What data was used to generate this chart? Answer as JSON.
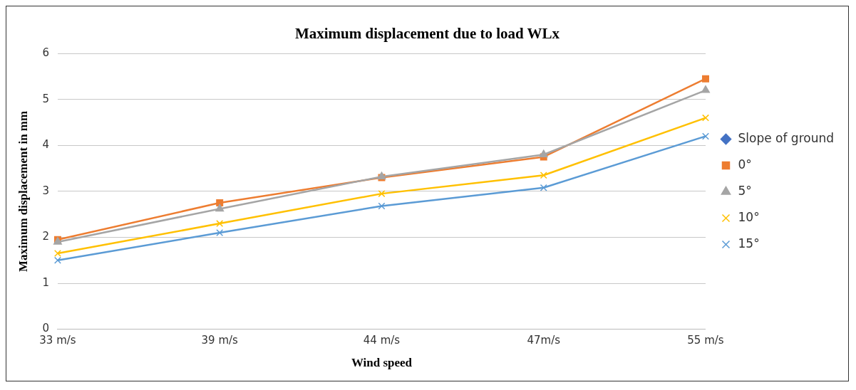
{
  "chart_data": {
    "type": "line",
    "title": "Maximum displacement due to load WLx",
    "xlabel": "Wind speed",
    "ylabel": "Maximum displacement in mm",
    "categories": [
      "33 m/s",
      "39 m/s",
      "44 m/s",
      "47m/s",
      "55 m/s"
    ],
    "series": [
      {
        "name": "Slope of ground",
        "color": "#4472c4",
        "marker": "diamond",
        "values": [
          null,
          null,
          null,
          null,
          null
        ]
      },
      {
        "name": "0°",
        "color": "#ed7d31",
        "marker": "square",
        "values": [
          1.95,
          2.75,
          3.3,
          3.75,
          5.45
        ]
      },
      {
        "name": "5°",
        "color": "#a5a5a5",
        "marker": "triangle",
        "values": [
          1.9,
          2.62,
          3.32,
          3.8,
          5.2
        ]
      },
      {
        "name": "10°",
        "color": "#ffc000",
        "marker": "cross",
        "values": [
          1.65,
          2.3,
          2.95,
          3.35,
          4.6
        ]
      },
      {
        "name": "15°",
        "color": "#5b9bd5",
        "marker": "cross",
        "values": [
          1.5,
          2.1,
          2.68,
          3.08,
          4.2
        ]
      }
    ],
    "ylim": [
      0,
      6
    ],
    "yticks": [
      0,
      1,
      2,
      3,
      4,
      5,
      6
    ],
    "grid": "y",
    "legend": "right"
  }
}
